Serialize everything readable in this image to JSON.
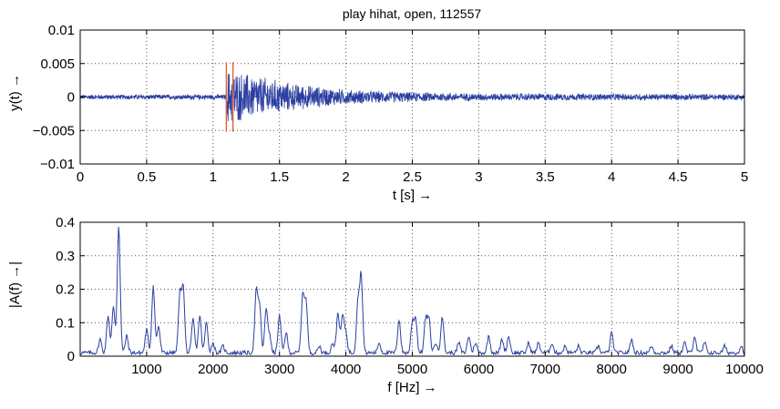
{
  "chart_data": [
    {
      "type": "line",
      "title": "play hihat, open, 112557",
      "xlabel": "t [s] →",
      "ylabel": "y(t)  →",
      "xlim": [
        0,
        5
      ],
      "ylim": [
        -0.01,
        0.01
      ],
      "xticks": [
        0,
        0.5,
        1,
        1.5,
        2,
        2.5,
        3,
        3.5,
        4,
        4.5,
        5
      ],
      "xtick_labels": [
        "0",
        "0.5",
        "1",
        "1.5",
        "2",
        "2.5",
        "3",
        "3.5",
        "4",
        "4.5",
        "5"
      ],
      "yticks": [
        -0.01,
        -0.005,
        0,
        0.005,
        0.01
      ],
      "ytick_labels": [
        "−0.01",
        "−0.005",
        "0",
        "0.005",
        "0.01"
      ],
      "grid": true,
      "series_color": "#2b3fa0",
      "marker_color": "#e8603a",
      "markers": [
        1.1,
        1.15
      ],
      "marker_ylim": [
        -0.0052,
        0.0052
      ],
      "envelope": {
        "noise_floor": 0.0004,
        "onset": 1.1,
        "peak_amp": 0.0045,
        "decay_points": [
          [
            1.1,
            0.0045
          ],
          [
            1.3,
            0.0036
          ],
          [
            1.6,
            0.0022
          ],
          [
            2.0,
            0.0012
          ],
          [
            2.5,
            0.0008
          ],
          [
            3.0,
            0.0006
          ],
          [
            5.0,
            0.0005
          ]
        ]
      }
    },
    {
      "type": "line",
      "title": "",
      "xlabel": "f [Hz] →",
      "ylabel": "|A(f)  →|",
      "xlim": [
        0,
        10000
      ],
      "ylim": [
        0,
        0.4
      ],
      "xticks": [
        1000,
        2000,
        3000,
        4000,
        5000,
        6000,
        7000,
        8000,
        9000,
        10000
      ],
      "xtick_labels": [
        "1000",
        "2000",
        "3000",
        "4000",
        "5000",
        "6000",
        "7000",
        "8000",
        "9000",
        "10000"
      ],
      "yticks": [
        0,
        0.1,
        0.2,
        0.3,
        0.4
      ],
      "ytick_labels": [
        "0",
        "0.1",
        "0.2",
        "0.3",
        "0.4"
      ],
      "grid": true,
      "series_color": "#2b3fa0",
      "baseline": 0.01,
      "peaks": [
        [
          300,
          0.04
        ],
        [
          420,
          0.11
        ],
        [
          500,
          0.135
        ],
        [
          580,
          0.38
        ],
        [
          700,
          0.05
        ],
        [
          1000,
          0.07
        ],
        [
          1100,
          0.2
        ],
        [
          1180,
          0.08
        ],
        [
          1500,
          0.17
        ],
        [
          1550,
          0.195
        ],
        [
          1700,
          0.1
        ],
        [
          1800,
          0.11
        ],
        [
          1900,
          0.09
        ],
        [
          2000,
          0.03
        ],
        [
          2150,
          0.02
        ],
        [
          2650,
          0.18
        ],
        [
          2700,
          0.14
        ],
        [
          2800,
          0.13
        ],
        [
          2850,
          0.05
        ],
        [
          3000,
          0.11
        ],
        [
          3100,
          0.06
        ],
        [
          3350,
          0.17
        ],
        [
          3400,
          0.15
        ],
        [
          3600,
          0.02
        ],
        [
          3800,
          0.03
        ],
        [
          3880,
          0.12
        ],
        [
          3950,
          0.11
        ],
        [
          4000,
          0.06
        ],
        [
          4180,
          0.15
        ],
        [
          4230,
          0.23
        ],
        [
          4500,
          0.03
        ],
        [
          4800,
          0.1
        ],
        [
          5000,
          0.09
        ],
        [
          5050,
          0.1
        ],
        [
          5200,
          0.1
        ],
        [
          5250,
          0.1
        ],
        [
          5350,
          0.03
        ],
        [
          5450,
          0.11
        ],
        [
          5700,
          0.03
        ],
        [
          5850,
          0.05
        ],
        [
          5950,
          0.03
        ],
        [
          6150,
          0.05
        ],
        [
          6350,
          0.04
        ],
        [
          6450,
          0.05
        ],
        [
          6750,
          0.03
        ],
        [
          6900,
          0.03
        ],
        [
          7100,
          0.03
        ],
        [
          7300,
          0.02
        ],
        [
          7500,
          0.02
        ],
        [
          7800,
          0.02
        ],
        [
          8000,
          0.06
        ],
        [
          8300,
          0.04
        ],
        [
          8600,
          0.02
        ],
        [
          8900,
          0.02
        ],
        [
          9100,
          0.03
        ],
        [
          9250,
          0.05
        ],
        [
          9400,
          0.03
        ],
        [
          9700,
          0.02
        ],
        [
          9950,
          0.02
        ]
      ]
    }
  ]
}
